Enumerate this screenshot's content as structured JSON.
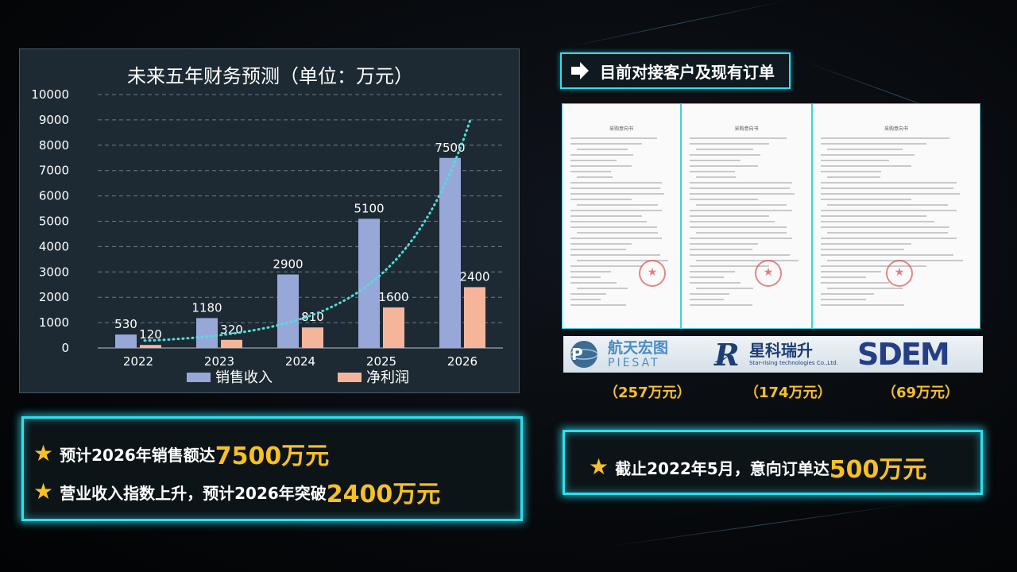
{
  "chart_data": {
    "type": "bar",
    "title": "未来五年财务预测（单位：万元）",
    "categories": [
      "2022",
      "2023",
      "2024",
      "2025",
      "2026"
    ],
    "series": [
      {
        "name": "销售收入",
        "values": [
          530,
          1180,
          2900,
          5100,
          7500
        ],
        "color": "#97a8d8"
      },
      {
        "name": "净利润",
        "values": [
          120,
          320,
          810,
          1600,
          2400
        ],
        "color": "#f5b59b"
      }
    ],
    "ylim": [
      0,
      10000
    ],
    "yticks": [
      0,
      1000,
      2000,
      3000,
      4000,
      5000,
      6000,
      7000,
      8000,
      9000,
      10000
    ],
    "grid": true,
    "gridline_style": "dashed",
    "trendline": {
      "style": "dotted",
      "color": "#4fe0e0"
    },
    "legend_position": "bottom"
  },
  "summary_left": {
    "line1": {
      "prefix": "预计2026年销售额达",
      "highlight": "7500万元"
    },
    "line2": {
      "prefix": "营业收入指数上升，预计2026年突破",
      "highlight": "2400万元"
    }
  },
  "orders": {
    "header": "目前对接客户及现有订单",
    "doc_title": "采购意向书",
    "customers": [
      {
        "name": "航天宏图",
        "subtitle": "PIESAT",
        "amount": "（257万元）"
      },
      {
        "name": "星科瑞升",
        "subtitle": "Star-rising technologies Co.,Ltd.",
        "amount": "（174万元）"
      },
      {
        "name": "SDEM",
        "subtitle": "",
        "amount": "（69万元）"
      }
    ],
    "summary": {
      "prefix": "截止2022年5月，意向订单达",
      "highlight": "500万元"
    }
  },
  "colors": {
    "accent": "#2de0f0",
    "highlight": "#f6c026",
    "panel": "#1d2a33"
  }
}
